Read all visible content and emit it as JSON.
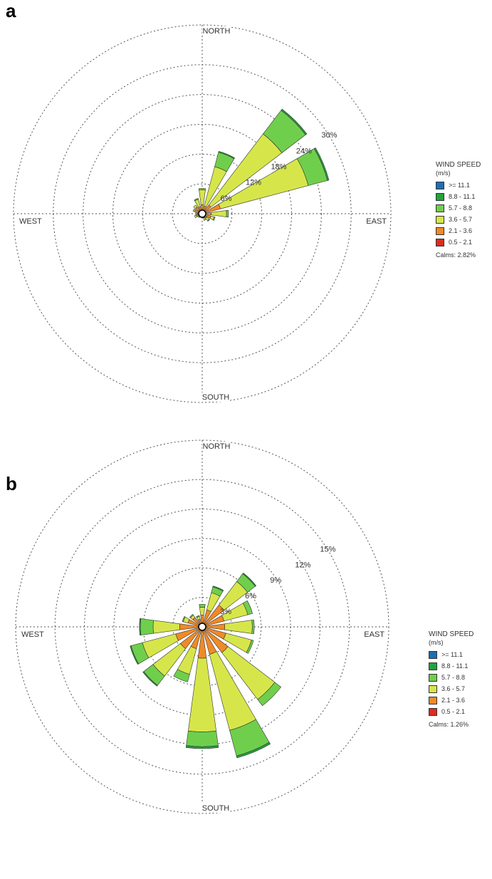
{
  "panels": [
    "a",
    "b"
  ],
  "legend": {
    "title": "WIND SPEED",
    "unit": "(m/s)",
    "bins": [
      {
        "label": ">= 11.1",
        "color": "#1f6fb5"
      },
      {
        "label": "8.8 - 11.1",
        "color": "#1ea53c"
      },
      {
        "label": "5.7 - 8.8",
        "color": "#6fcf4c"
      },
      {
        "label": "3.6 - 5.7",
        "color": "#d6e64a"
      },
      {
        "label": "2.1 - 3.6",
        "color": "#f08a28"
      },
      {
        "label": "0.5 - 2.1",
        "color": "#e02b1f"
      }
    ]
  },
  "chart_data": [
    {
      "type": "wind-rose",
      "panel": "a",
      "directions": [
        "N",
        "NNE",
        "NE",
        "ENE",
        "E",
        "ESE",
        "SE",
        "SSE",
        "S",
        "SSW",
        "SW",
        "WSW",
        "W",
        "WNW",
        "NW",
        "NNW"
      ],
      "compass_labels": [
        "NORTH",
        "EAST",
        "SOUTH",
        "WEST"
      ],
      "ring_labels": [
        "6%",
        "12%",
        "18%",
        "24%",
        "30%"
      ],
      "ring_values": [
        6,
        12,
        18,
        24,
        30
      ],
      "rmax": 38,
      "calms": "Calms: 2.82%",
      "series": [
        {
          "name": "0.5 - 2.1",
          "values": [
            0.3,
            0.4,
            0.5,
            0.5,
            0.3,
            0.3,
            0.3,
            0.3,
            0.2,
            0.2,
            0.2,
            0.3,
            0.3,
            0.3,
            0.3,
            0.3
          ]
        },
        {
          "name": "2.1 - 3.6",
          "values": [
            1.5,
            1.2,
            1.7,
            3.3,
            1.5,
            1.5,
            0.8,
            0.6,
            0.4,
            0.4,
            0.5,
            0.9,
            0.8,
            1.3,
            1.4,
            1.2
          ]
        },
        {
          "name": "3.6 - 5.7",
          "values": [
            3.0,
            8.2,
            18.0,
            18.3,
            3.1,
            0.7,
            0.7,
            0.5,
            0.2,
            0.2,
            0.3,
            0.4,
            0.3,
            0.3,
            0.5,
            1.5
          ]
        },
        {
          "name": "5.7 - 8.8",
          "values": [
            0.3,
            3.0,
            6.0,
            4.0,
            0.4,
            0.2,
            0.1,
            0,
            0,
            0,
            0,
            0,
            0,
            0,
            0,
            0.2
          ]
        },
        {
          "name": "8.8 - 11.1",
          "values": [
            0,
            0.2,
            0.3,
            0.3,
            0,
            0,
            0,
            0,
            0,
            0,
            0,
            0,
            0,
            0,
            0,
            0
          ]
        },
        {
          "name": ">= 11.1",
          "values": [
            0,
            0,
            0,
            0,
            0,
            0,
            0,
            0,
            0,
            0,
            0,
            0,
            0,
            0,
            0,
            0
          ]
        }
      ]
    },
    {
      "type": "wind-rose",
      "panel": "b",
      "directions": [
        "N",
        "NNE",
        "NE",
        "ENE",
        "E",
        "ESE",
        "SE",
        "SSE",
        "S",
        "SSW",
        "SW",
        "WSW",
        "W",
        "WNW",
        "NW",
        "NNW"
      ],
      "compass_labels": [
        "NORTH",
        "EAST",
        "SOUTH",
        "WEST"
      ],
      "ring_labels": [
        "3%",
        "6%",
        "9%",
        "12%",
        "15%"
      ],
      "ring_values": [
        3,
        6,
        9,
        12,
        15
      ],
      "rmax": 19,
      "calms": "Calms: 1.26%",
      "series": [
        {
          "name": "0.5 - 2.1",
          "values": [
            0.2,
            0.3,
            0.3,
            0.3,
            0.3,
            0.3,
            0.3,
            0.4,
            0.4,
            0.3,
            0.3,
            0.3,
            0.3,
            0.3,
            0.2,
            0.2
          ]
        },
        {
          "name": "2.1 - 3.6",
          "values": [
            1.0,
            1.5,
            2.5,
            2.0,
            2.0,
            2.2,
            3.0,
            2.5,
            2.8,
            2.0,
            2.5,
            2.5,
            2.0,
            1.2,
            1.0,
            0.6
          ]
        },
        {
          "name": "3.6 - 5.7",
          "values": [
            0.8,
            1.8,
            3.0,
            2.5,
            2.8,
            2.7,
            6.0,
            8.0,
            7.5,
            2.7,
            3.5,
            3.5,
            2.7,
            0.5,
            0.3,
            0.3
          ]
        },
        {
          "name": "5.7 - 8.8",
          "values": [
            0.3,
            0.6,
            1.0,
            0.5,
            0.2,
            0.2,
            0.8,
            2.7,
            1.5,
            0.8,
            1.2,
            1.2,
            1.3,
            0.1,
            0.1,
            0.1
          ]
        },
        {
          "name": "8.8 - 11.1",
          "values": [
            0,
            0.1,
            0.1,
            0,
            0,
            0,
            0,
            0.2,
            0.2,
            0,
            0.1,
            0.1,
            0.1,
            0,
            0,
            0
          ]
        },
        {
          "name": ">= 11.1",
          "values": [
            0,
            0,
            0,
            0,
            0,
            0,
            0,
            0,
            0,
            0,
            0,
            0,
            0,
            0,
            0,
            0
          ]
        }
      ]
    }
  ]
}
